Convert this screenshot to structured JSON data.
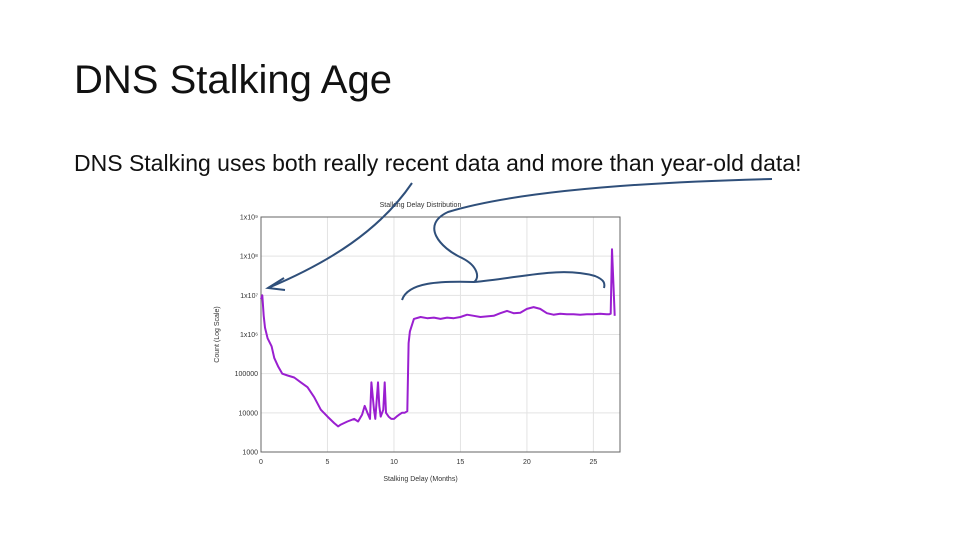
{
  "slide": {
    "title": "DNS Stalking Age",
    "subtitle": "DNS Stalking uses both really recent data and more than year-old data!"
  },
  "colors": {
    "series": "#9a1fd0",
    "annotation_arrow": "#2f4f7a",
    "grid": "#e3e3e3",
    "frame": "#666666"
  },
  "chart_data": {
    "type": "line",
    "title": "Stalking Delay Distribution",
    "xlabel": "Stalking Delay (Months)",
    "ylabel": "Count (Log Scale)",
    "xlim": [
      0,
      27
    ],
    "ylim": [
      1000,
      1000000000
    ],
    "y_scale": "log",
    "grid": true,
    "x_ticks": [
      0,
      5,
      10,
      15,
      20,
      25
    ],
    "x_tick_labels": [
      "0",
      "5",
      "10",
      "15",
      "20",
      "25"
    ],
    "y_ticks": [
      1000,
      10000,
      100000,
      1000000,
      10000000,
      100000000,
      1000000000
    ],
    "y_tick_labels": [
      "1000",
      "10000",
      "100000",
      "1x10⁶",
      "1x10⁷",
      "1x10⁸",
      "1x10⁹"
    ],
    "series": [
      {
        "x": [
          0,
          0.1,
          0.2,
          0.3,
          0.5,
          0.8,
          1.0,
          1.3,
          1.6,
          2.0,
          2.5,
          3.0,
          3.5,
          4.0,
          4.5,
          5.0,
          5.5,
          5.8,
          6.0,
          6.5,
          7.0,
          7.3,
          7.6,
          7.8,
          8.0,
          8.2,
          8.3,
          8.5,
          8.6,
          8.8,
          8.9,
          9.0,
          9.2,
          9.3,
          9.4,
          9.6,
          9.8,
          10.0,
          10.2,
          10.4,
          10.6,
          10.8,
          11.0,
          11.1,
          11.2,
          11.5,
          12.0,
          12.5,
          13.0,
          13.5,
          14.0,
          14.5,
          15.0,
          15.5,
          16.0,
          16.5,
          17.0,
          17.5,
          18.0,
          18.5,
          19.0,
          19.5,
          20.0,
          20.5,
          21.0,
          21.5,
          22.0,
          22.5,
          23.0,
          23.5,
          24.0,
          24.5,
          25.0,
          25.5,
          26.0,
          26.2,
          26.3,
          26.4,
          26.5,
          26.6
        ],
        "y": [
          8000000,
          10000000,
          3000000,
          1500000,
          800000,
          500000,
          250000,
          150000,
          100000,
          90000,
          80000,
          60000,
          45000,
          25000,
          12000,
          8000,
          5500,
          4500,
          5000,
          6000,
          7000,
          6000,
          9000,
          15000,
          10000,
          7000,
          60000,
          12000,
          7000,
          60000,
          15000,
          8000,
          12000,
          60000,
          10000,
          8000,
          7000,
          7000,
          8000,
          9000,
          10000,
          10000,
          11000,
          600000,
          1200000,
          2500000,
          2800000,
          2600000,
          2700000,
          2500000,
          2700000,
          2600000,
          2800000,
          3200000,
          3000000,
          2800000,
          2900000,
          3000000,
          3500000,
          4000000,
          3500000,
          3600000,
          4500000,
          5000000,
          4500000,
          3500000,
          3200000,
          3400000,
          3300000,
          3300000,
          3200000,
          3300000,
          3300000,
          3400000,
          3300000,
          3300000,
          3400000,
          150000000,
          20000000,
          3000000
        ]
      }
    ]
  }
}
